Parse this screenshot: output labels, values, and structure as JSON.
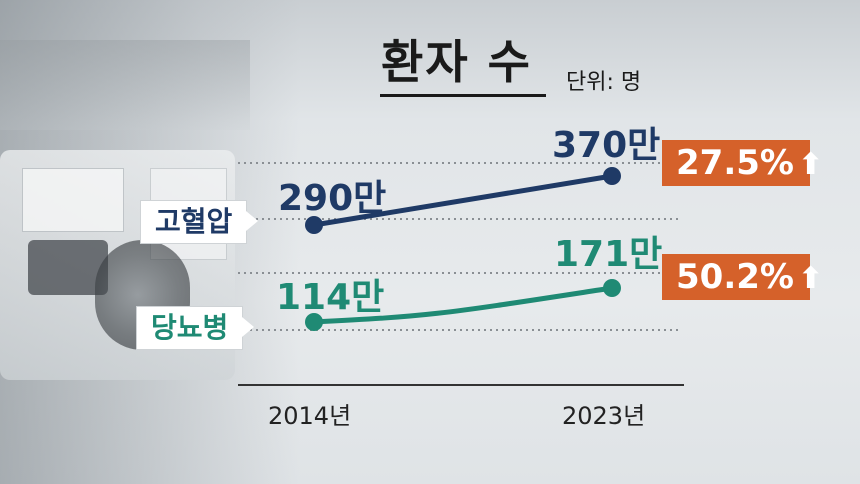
{
  "title": "환자 수",
  "unit_label": "단위: 명",
  "colors": {
    "hypertension": "#1f3a66",
    "diabetes": "#1f8a74",
    "badge": "#d5612a",
    "axis": "#333333",
    "grid": "#8a8f94"
  },
  "icons": {
    "badge_arrow": "arrow-up-icon"
  },
  "chart_data": {
    "type": "line",
    "title": "환자 수",
    "categories": [
      "2014년",
      "2023년"
    ],
    "series": [
      {
        "name": "고혈압",
        "values": [
          290,
          370
        ],
        "value_labels": [
          "290만",
          "370만"
        ],
        "change_label": "27.5%"
      },
      {
        "name": "당뇨병",
        "values": [
          114,
          171
        ],
        "value_labels": [
          "114만",
          "171만"
        ],
        "change_label": "50.2%"
      }
    ],
    "grid": true
  }
}
